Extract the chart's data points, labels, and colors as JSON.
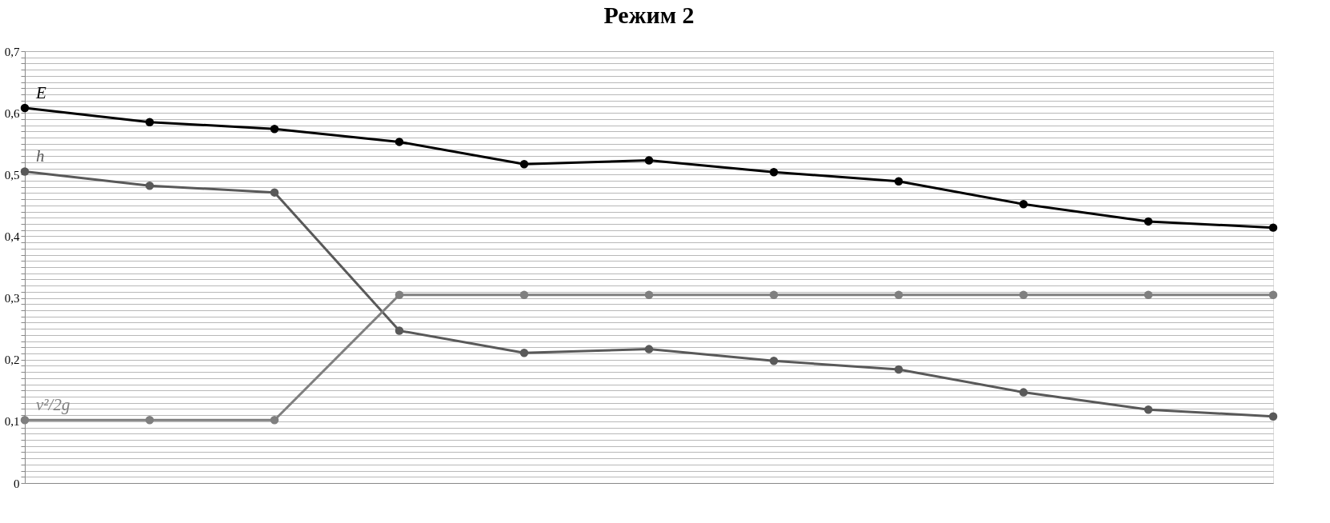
{
  "chart_data": {
    "type": "line",
    "title": "Режим 2",
    "categories": [
      null,
      null,
      null,
      null,
      null,
      null,
      null,
      null,
      null,
      null,
      null
    ],
    "ylim": [
      0,
      0.7
    ],
    "tick_labels": "y",
    "grid": "y",
    "marker": "circle",
    "line_style": "solid",
    "legend": "left",
    "yticks": [
      {
        "value": 0,
        "label": "0"
      },
      {
        "value": 0.01,
        "label": null
      },
      {
        "value": 0.02,
        "label": null
      },
      {
        "value": 0.03,
        "label": null
      },
      {
        "value": 0.04,
        "label": null
      },
      {
        "value": 0.05,
        "label": null
      },
      {
        "value": 0.06,
        "label": null
      },
      {
        "value": 0.07,
        "label": null
      },
      {
        "value": 0.08,
        "label": null
      },
      {
        "value": 0.09,
        "label": null
      },
      {
        "value": 0.1,
        "label": "0,1"
      },
      {
        "value": 0.11,
        "label": null
      },
      {
        "value": 0.12,
        "label": null
      },
      {
        "value": 0.13,
        "label": null
      },
      {
        "value": 0.14,
        "label": null
      },
      {
        "value": 0.15,
        "label": null
      },
      {
        "value": 0.16,
        "label": null
      },
      {
        "value": 0.17,
        "label": null
      },
      {
        "value": 0.18,
        "label": null
      },
      {
        "value": 0.19,
        "label": null
      },
      {
        "value": 0.2,
        "label": "0,2"
      },
      {
        "value": 0.21,
        "label": null
      },
      {
        "value": 0.22,
        "label": null
      },
      {
        "value": 0.23,
        "label": null
      },
      {
        "value": 0.24,
        "label": null
      },
      {
        "value": 0.25,
        "label": null
      },
      {
        "value": 0.26,
        "label": null
      },
      {
        "value": 0.27,
        "label": null
      },
      {
        "value": 0.28,
        "label": null
      },
      {
        "value": 0.29,
        "label": null
      },
      {
        "value": 0.3,
        "label": "0,3"
      },
      {
        "value": 0.31,
        "label": null
      },
      {
        "value": 0.32,
        "label": null
      },
      {
        "value": 0.33,
        "label": null
      },
      {
        "value": 0.34,
        "label": null
      },
      {
        "value": 0.35,
        "label": null
      },
      {
        "value": 0.36,
        "label": null
      },
      {
        "value": 0.37,
        "label": null
      },
      {
        "value": 0.38,
        "label": null
      },
      {
        "value": 0.39,
        "label": null
      },
      {
        "value": 0.4,
        "label": "0,4"
      },
      {
        "value": 0.41,
        "label": null
      },
      {
        "value": 0.42,
        "label": null
      },
      {
        "value": 0.43,
        "label": null
      },
      {
        "value": 0.44,
        "label": null
      },
      {
        "value": 0.45,
        "label": null
      },
      {
        "value": 0.46,
        "label": null
      },
      {
        "value": 0.47,
        "label": null
      },
      {
        "value": 0.48,
        "label": null
      },
      {
        "value": 0.49,
        "label": null
      },
      {
        "value": 0.5,
        "label": "0,5"
      },
      {
        "value": 0.51,
        "label": null
      },
      {
        "value": 0.52,
        "label": null
      },
      {
        "value": 0.53,
        "label": null
      },
      {
        "value": 0.54,
        "label": null
      },
      {
        "value": 0.55,
        "label": null
      },
      {
        "value": 0.56,
        "label": null
      },
      {
        "value": 0.57,
        "label": null
      },
      {
        "value": 0.58,
        "label": null
      },
      {
        "value": 0.59,
        "label": null
      },
      {
        "value": 0.6,
        "label": "0,6"
      },
      {
        "value": 0.61,
        "label": null
      },
      {
        "value": 0.62,
        "label": null
      },
      {
        "value": 0.63,
        "label": null
      },
      {
        "value": 0.64,
        "label": null
      },
      {
        "value": 0.65,
        "label": null
      },
      {
        "value": 0.66,
        "label": null
      },
      {
        "value": 0.67,
        "label": null
      },
      {
        "value": 0.68,
        "label": null
      },
      {
        "value": 0.69,
        "label": null
      },
      {
        "value": 0.7,
        "label": "0,7"
      }
    ],
    "series": [
      {
        "name": "E",
        "color": "#000000",
        "values": [
          0.608,
          0.585,
          0.574,
          0.553,
          0.517,
          0.523,
          0.504,
          0.489,
          0.452,
          0.424,
          0.414
        ]
      },
      {
        "name": "h",
        "color": "#595959",
        "values": [
          0.505,
          0.482,
          0.471,
          0.247,
          0.211,
          0.217,
          0.198,
          0.184,
          0.147,
          0.119,
          0.108
        ]
      },
      {
        "name": "v²/2g",
        "color": "#7f7f7f",
        "values": [
          0.102,
          0.102,
          0.102,
          0.305,
          0.305,
          0.305,
          0.305,
          0.305,
          0.305,
          0.305,
          0.305
        ]
      }
    ]
  }
}
